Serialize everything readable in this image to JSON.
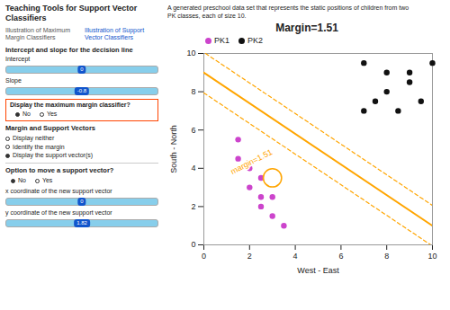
{
  "page": {
    "title": "Teaching Tools for Support Vector Classifiers",
    "tabs": [
      {
        "text": "Illustration of Maximum Margin Classifiers",
        "color": "#555555"
      },
      {
        "text": "Illustration of Support Vector Classifiers",
        "color": "#1155CC"
      }
    ],
    "description": "A generated preschool data set that represents the static positions of children from two\nPK classes, each of size 10.",
    "controls": [
      {
        "type": "heading",
        "text": "Intercept and slope for the decision line"
      },
      {
        "type": "slider",
        "label": "Intercept",
        "value": 0
      },
      {
        "type": "slider",
        "label": "Slope",
        "value": -0.8
      },
      {
        "type": "radio",
        "label": "Display the maximum margin classifier?",
        "options": [
          "No",
          "Yes"
        ],
        "selected": "No",
        "color": "#FF4400"
      },
      {
        "type": "heading",
        "text": "Margin and Support Vectors"
      },
      {
        "type": "radio",
        "options": [
          "Display neither",
          "Identify the margin",
          "Display the support vector(s)"
        ],
        "selected": "Display the support vector(s)"
      },
      {
        "type": "separator"
      },
      {
        "type": "heading",
        "text": "Option to move a support vector?"
      },
      {
        "type": "radio",
        "options": [
          "No",
          "Yes"
        ],
        "selected": "No"
      },
      {
        "type": "slider",
        "label": "x coordinate of the new support vector",
        "value": 0
      },
      {
        "type": "slider",
        "label": "y coordinate of the new support vector",
        "value": 1.82
      }
    ]
  },
  "chart_data": {
    "type": "scatter",
    "title": "Margin=1.51",
    "x_label": "West - East",
    "y_label": "South - North",
    "xlim": [
      0,
      10
    ],
    "ylim": [
      0,
      10
    ],
    "xticks": [
      0,
      2,
      4,
      6,
      8,
      10
    ],
    "yticks": [
      0,
      2,
      4,
      6,
      8,
      10
    ],
    "grid": false,
    "legend": "upper left",
    "series": [
      {
        "name": "PK1",
        "color": "#CC44CC",
        "x": [
          1.5,
          1.5,
          2.0,
          2.5,
          2.0,
          2.5,
          3.0,
          2.5,
          3.0,
          3.5
        ],
        "values": [
          5.5,
          4.5,
          4.0,
          3.5,
          3.0,
          2.5,
          2.5,
          2.0,
          1.5,
          1.0
        ]
      },
      {
        "name": "PK2",
        "color": "#111111",
        "x": [
          7.0,
          8.0,
          9.0,
          10.0,
          8.0,
          9.0,
          7.5,
          9.5,
          7.0,
          8.5
        ],
        "values": [
          9.5,
          9.0,
          9.0,
          9.5,
          8.0,
          8.5,
          7.5,
          7.5,
          7.0,
          7.0
        ]
      }
    ],
    "lines": [
      {
        "x": [
          0,
          10
        ],
        "y": [
          9,
          1
        ],
        "color": "#FFA500",
        "line_style": "solid"
      },
      {
        "x": [
          0.075,
          10
        ],
        "y": [
          10,
          2.06
        ],
        "color": "#FFA500",
        "line_style": "dashed"
      },
      {
        "x": [
          0,
          9.925
        ],
        "y": [
          7.94,
          0
        ],
        "color": "#FFA500",
        "line_style": "dashed"
      }
    ],
    "support_vector": {
      "x": 3.0,
      "y": 3.5,
      "radius": 0.4,
      "color": "#FFA500"
    },
    "annotations": [
      {
        "text": "margin=1.51",
        "x": 1.2,
        "y": 3.8,
        "color": "#FFA500"
      }
    ]
  }
}
